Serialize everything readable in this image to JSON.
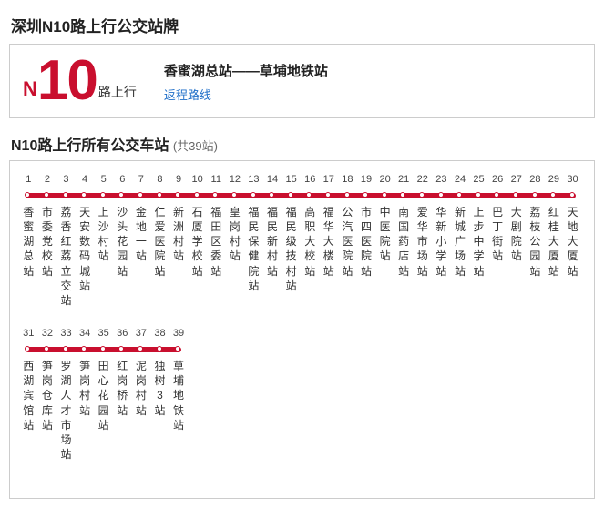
{
  "page_title": "深圳N10路上行公交站牌",
  "badge": {
    "prefix": "N",
    "number": "10",
    "suffix": "路上行"
  },
  "terminals": "香蜜湖总站——草埔地铁站",
  "return_link": "返程路线",
  "stations_title": "N10路上行所有公交车站",
  "stations_count_text": "(共39站)",
  "layout": {
    "cell_width": 20.6,
    "row1_count": 30,
    "row2_count": 9,
    "line_color": "#c90f2e",
    "border_color": "#cccccc",
    "link_color": "#1e6ec8",
    "text_color": "#333333"
  },
  "stations": [
    "香蜜湖总站",
    "市委党校站",
    "荔香红荔立交站",
    "天安数码城站",
    "上沙村站",
    "沙头花园站",
    "金地一站",
    "仁爱医院站",
    "新洲村站",
    "石厦学校站",
    "福田区委站",
    "皇岗村站",
    "福民保健院站",
    "福民新村站",
    "福民级技村站",
    "高职大校站",
    "福华大楼站",
    "公汽医院站",
    "市四医院站",
    "中医院站",
    "南国药店站",
    "爱华市场站",
    "华新小学站",
    "新城广场站",
    "上步中学站",
    "巴丁街站",
    "大剧院站",
    "荔枝公园站",
    "红桂大厦站",
    "天地大厦站",
    "西湖宾馆站",
    "笋岗仓库站",
    "罗湖人才市场站",
    "笋岗村站",
    "田心花园站",
    "红岗桥站",
    "泥岗村站",
    "独树3站",
    "草埔地铁站"
  ]
}
